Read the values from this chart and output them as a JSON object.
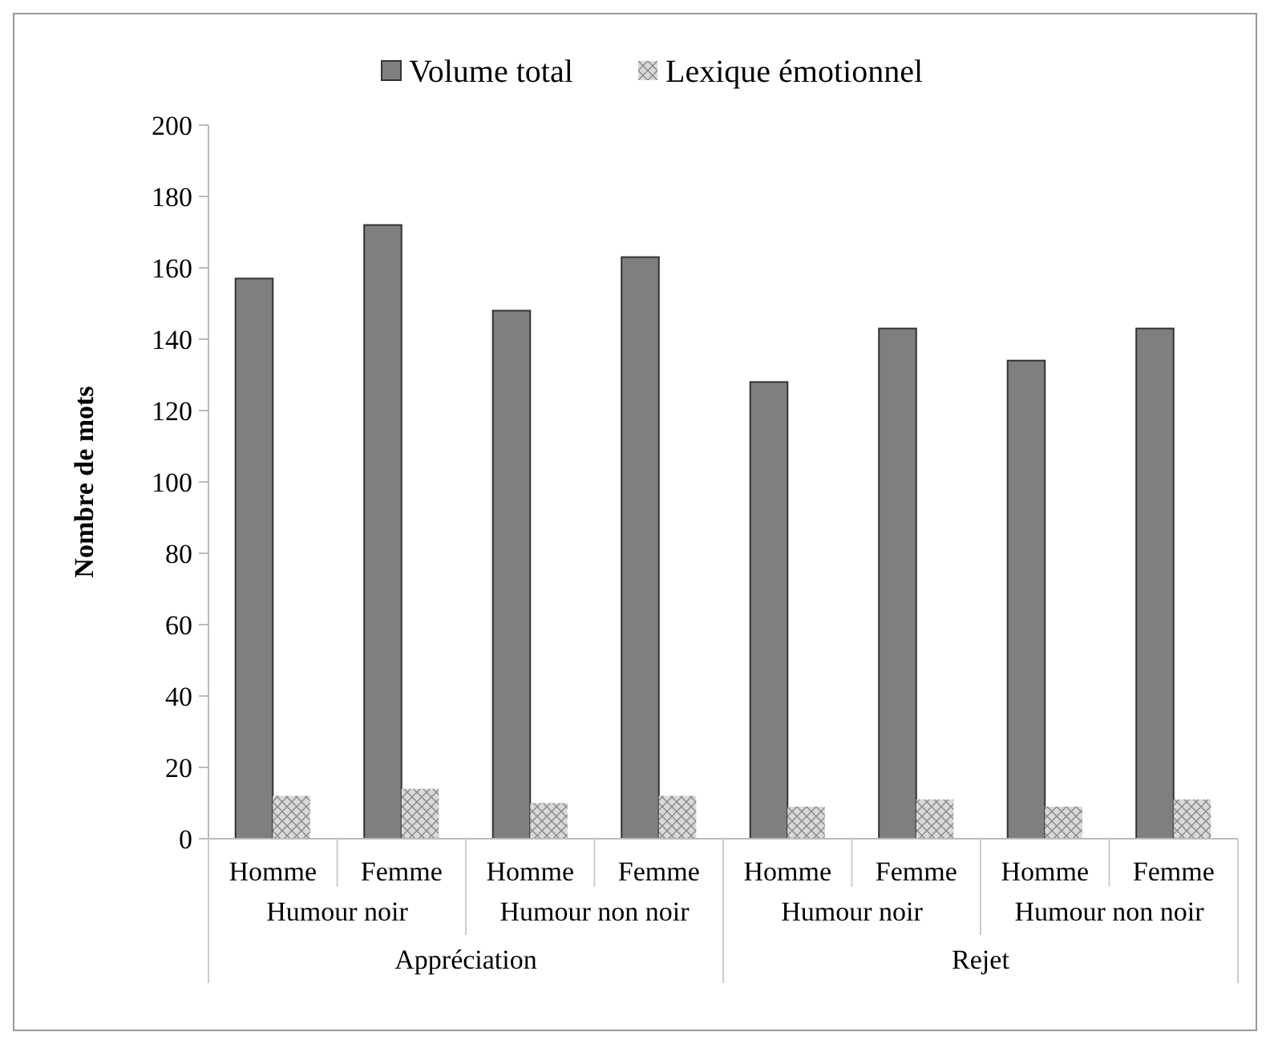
{
  "chart_data": {
    "type": "bar",
    "ylabel": "Nombre de mots",
    "categories": [
      "Homme",
      "Femme",
      "Homme",
      "Femme",
      "Homme",
      "Femme",
      "Homme",
      "Femme"
    ],
    "series": [
      {
        "name": "Volume total",
        "color": "#7f7f7f",
        "values": [
          157,
          172,
          148,
          163,
          128,
          143,
          134,
          143
        ]
      },
      {
        "name": "Lexique émotionnel",
        "color": "#d9d9d9",
        "values": [
          12,
          14,
          10,
          12,
          9,
          11,
          9,
          11
        ]
      }
    ],
    "annotations": [
      "Humour noir",
      "Humour non noir",
      "Humour noir",
      "Humour non noir",
      "Appréciation",
      "Rejet"
    ],
    "ylim": [
      0,
      200
    ],
    "yticks": [
      0,
      20,
      40,
      60,
      80,
      100,
      120,
      140,
      160,
      180,
      200
    ],
    "legend": "top",
    "grid": false
  }
}
